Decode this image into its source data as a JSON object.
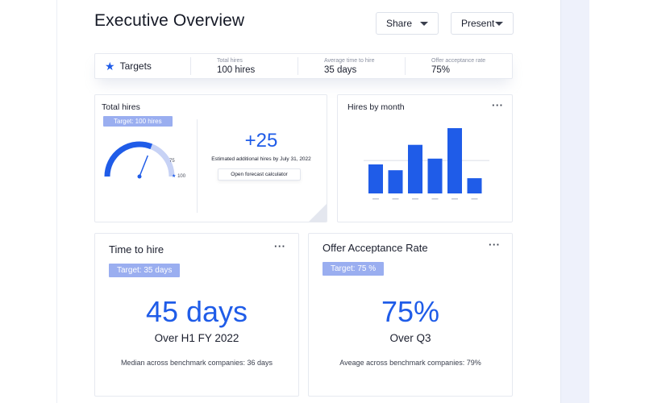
{
  "page_title": "Executive Overview",
  "actions": {
    "share_label": "Share",
    "present_label": "Present"
  },
  "targets": {
    "label": "Targets",
    "items": [
      {
        "label": "Total hires",
        "value": "100 hires"
      },
      {
        "label": "Average time to hire",
        "value": "35 days"
      },
      {
        "label": "Offer acceptance rate",
        "value": "75%"
      }
    ]
  },
  "total_hires": {
    "title": "Total hires",
    "target_pill": "Target: 100 hires",
    "gauge": {
      "fraction_to_75": 0.62,
      "needle_fraction": 0.62,
      "tick_75": "75",
      "tick_100": "100"
    },
    "delta": "+25",
    "estimate_text": "Estimated additional hires by July 31, 2022",
    "forecast_button": "Open forecast calculator"
  },
  "hires_by_month": {
    "title": "Hires by month",
    "more_icon": "more-horizontal-icon"
  },
  "chart_data": {
    "type": "bar",
    "title": "Hires by month",
    "categories": [
      "",
      "",
      "",
      "",
      "",
      ""
    ],
    "values": [
      8,
      6.4,
      13.4,
      9.6,
      18,
      4.2
    ],
    "ylim": [
      0,
      20
    ],
    "reference_line": 9.1,
    "color": "#1f5ce8",
    "grid": false
  },
  "time_to_hire": {
    "title": "Time to hire",
    "target_pill": "Target: 35 days",
    "value": "45 days",
    "period": "Over H1 FY 2022",
    "note": "Median across benchmark companies: 36 days"
  },
  "offer_acceptance": {
    "title": "Offer Acceptance Rate",
    "target_pill": "Target: 75 %",
    "value": "75%",
    "period": "Over Q3",
    "note": "Aveage across benchmark companies: 79%"
  },
  "colors": {
    "accent": "#1f5ce8",
    "pill": "#9aaef0",
    "gauge_track": "#c7d2f5"
  }
}
